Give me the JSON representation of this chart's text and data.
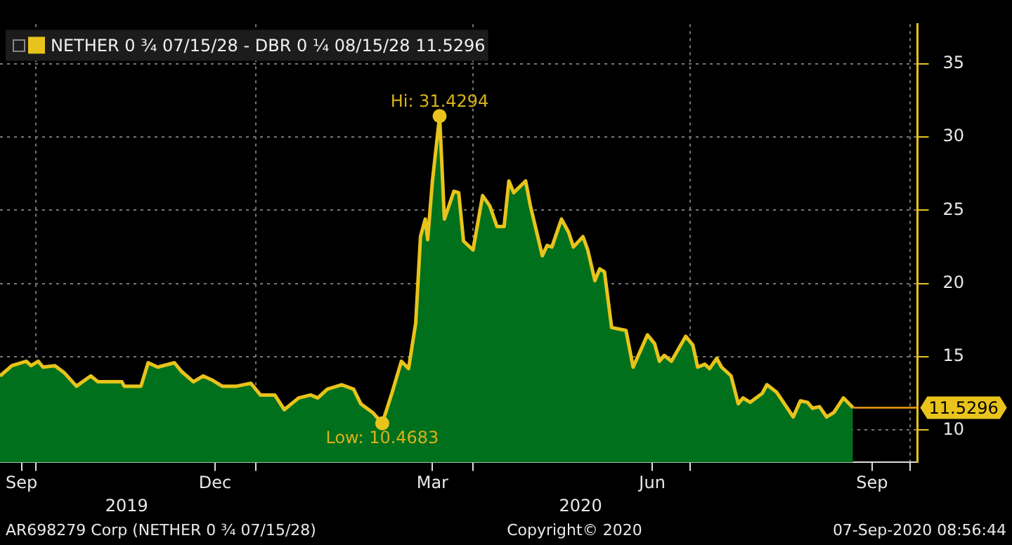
{
  "chart_data": {
    "type": "line",
    "x": [
      "2019-09-16",
      "2019-09-21",
      "2019-09-27",
      "2019-09-29",
      "2019-10-02",
      "2019-10-04",
      "2019-10-09",
      "2019-10-13",
      "2019-10-18",
      "2019-10-24",
      "2019-10-27",
      "2019-11-06",
      "2019-11-07",
      "2019-11-14",
      "2019-11-17",
      "2019-11-21",
      "2019-11-28",
      "2019-12-01",
      "2019-12-06",
      "2019-12-10",
      "2019-12-14",
      "2019-12-18",
      "2019-12-24",
      "2019-12-30",
      "2020-01-03",
      "2020-01-09",
      "2020-01-13",
      "2020-01-19",
      "2020-01-24",
      "2020-01-27",
      "2020-01-31",
      "2020-02-06",
      "2020-02-11",
      "2020-02-14",
      "2020-02-19",
      "2020-02-23",
      "2020-02-27",
      "2020-03-02",
      "2020-03-05",
      "2020-03-08",
      "2020-03-10",
      "2020-03-12",
      "2020-03-13",
      "2020-03-15",
      "2020-03-18",
      "2020-03-20",
      "2020-03-24",
      "2020-03-26",
      "2020-03-28",
      "2020-04-01",
      "2020-04-05",
      "2020-04-08",
      "2020-04-11",
      "2020-04-14",
      "2020-04-16",
      "2020-04-18",
      "2020-04-23",
      "2020-04-25",
      "2020-04-30",
      "2020-05-02",
      "2020-05-04",
      "2020-05-08",
      "2020-05-11",
      "2020-05-13",
      "2020-05-17",
      "2020-05-19",
      "2020-05-22",
      "2020-05-24",
      "2020-05-26",
      "2020-05-29",
      "2020-06-04",
      "2020-06-07",
      "2020-06-13",
      "2020-06-16",
      "2020-06-18",
      "2020-06-20",
      "2020-06-23",
      "2020-06-29",
      "2020-07-02",
      "2020-07-04",
      "2020-07-07",
      "2020-07-09",
      "2020-07-12",
      "2020-07-14",
      "2020-07-18",
      "2020-07-21",
      "2020-07-23",
      "2020-07-26",
      "2020-07-31",
      "2020-08-02",
      "2020-08-06",
      "2020-08-13",
      "2020-08-16",
      "2020-08-19",
      "2020-08-21",
      "2020-08-24",
      "2020-08-27",
      "2020-08-30",
      "2020-09-03",
      "2020-09-07"
    ],
    "series": [
      {
        "name": "NETHER 0 ¾ 07/15/28 - DBR 0 ¼ 08/15/28 11.5296",
        "color": "#e8c31b",
        "values": [
          13.7,
          14.4,
          14.7,
          14.4,
          14.7,
          14.3,
          14.4,
          13.9,
          13.0,
          13.7,
          13.3,
          13.3,
          13.0,
          13.0,
          14.6,
          14.3,
          14.6,
          14.0,
          13.3,
          13.7,
          13.4,
          13.0,
          13.0,
          13.2,
          12.4,
          12.4,
          11.4,
          12.2,
          12.4,
          12.2,
          12.8,
          13.1,
          12.8,
          11.8,
          11.2,
          10.4683,
          12.5,
          14.7,
          14.2,
          17.3,
          23.2,
          24.4,
          23.0,
          27.0,
          31.4294,
          24.4,
          26.3,
          26.2,
          22.9,
          22.3,
          26.0,
          25.3,
          23.9,
          23.9,
          27.0,
          26.2,
          27.0,
          25.3,
          21.9,
          22.6,
          22.5,
          24.4,
          23.5,
          22.5,
          23.2,
          22.3,
          20.2,
          21.0,
          20.8,
          17.0,
          16.8,
          14.3,
          16.5,
          15.9,
          14.7,
          15.1,
          14.7,
          16.4,
          15.8,
          14.3,
          14.5,
          14.2,
          14.9,
          14.3,
          13.7,
          11.8,
          12.2,
          11.9,
          12.5,
          13.1,
          12.6,
          10.9,
          12.0,
          11.9,
          11.5,
          11.6,
          10.9,
          11.2,
          12.2,
          11.5296
        ]
      },
      {
        "type": "area",
        "color": "#00701c",
        "values": [
          13.7,
          14.4,
          14.7,
          14.4,
          14.7,
          14.3,
          14.4,
          13.9,
          13.0,
          13.7,
          13.3,
          13.3,
          13.0,
          13.0,
          14.6,
          14.3,
          14.6,
          14.0,
          13.3,
          13.7,
          13.4,
          13.0,
          13.0,
          13.2,
          12.4,
          12.4,
          11.4,
          12.2,
          12.4,
          12.2,
          12.8,
          13.1,
          12.8,
          11.8,
          11.2,
          10.4683,
          12.5,
          14.7,
          14.2,
          17.3,
          23.2,
          24.4,
          23.0,
          27.0,
          31.4294,
          24.4,
          26.3,
          26.2,
          22.9,
          22.3,
          26.0,
          25.3,
          23.9,
          23.9,
          27.0,
          26.2,
          27.0,
          25.3,
          21.9,
          22.6,
          22.5,
          24.4,
          23.5,
          22.5,
          23.2,
          22.3,
          20.2,
          21.0,
          20.8,
          17.0,
          16.8,
          14.3,
          16.5,
          15.9,
          14.7,
          15.1,
          14.7,
          16.4,
          15.8,
          14.3,
          14.5,
          14.2,
          14.9,
          14.3,
          13.7,
          11.8,
          12.2,
          11.9,
          12.5,
          13.1,
          12.6,
          10.9,
          12.0,
          11.9,
          11.5,
          11.6,
          10.9,
          11.2,
          12.2,
          11.5296
        ]
      }
    ],
    "xlim": [
      "2019-09-16",
      "2020-10-04"
    ],
    "xticks": [
      {
        "value": "2019-09-25",
        "label": "Sep"
      },
      {
        "value": "2019-10-01",
        "label": null
      },
      {
        "value": "2019-12-15",
        "label": "Dec"
      },
      {
        "value": "2020-01-01",
        "label": null
      },
      {
        "value": "2020-03-15",
        "label": "Mar"
      },
      {
        "value": "2020-04-01",
        "label": null
      },
      {
        "value": "2020-06-15",
        "label": "Jun"
      },
      {
        "value": "2020-07-01",
        "label": null
      },
      {
        "value": "2020-09-15",
        "label": "Sep"
      },
      {
        "value": "2020-10-01",
        "label": null
      }
    ],
    "x2lim": [
      "2019-09-16",
      "2020-10-04"
    ],
    "x2ticks": [
      {
        "value": "2019-11-08",
        "label": "2019"
      },
      {
        "value": "2020-05-16",
        "label": "2020"
      }
    ],
    "ylim": [
      7.8,
      37.7
    ],
    "yticks": [
      10,
      15,
      20,
      25,
      30,
      35
    ],
    "grid": true,
    "legend": "top left",
    "ref_lines": [
      {
        "axis": "y",
        "value": 11.5296,
        "label": "11.5296",
        "color": "#f39c12"
      }
    ],
    "annotations": [
      {
        "text": "Hi: 31.4294",
        "x": "2020-03-18",
        "y": 31.4294
      },
      {
        "text": "Low: 10.4683",
        "x": "2020-02-23",
        "y": 10.4683
      },
      "AR698279 Corp (NETHER 0 ¾ 07/15/28)",
      "Copyright© 2020",
      "07-Sep-2020 08:56:44"
    ]
  }
}
